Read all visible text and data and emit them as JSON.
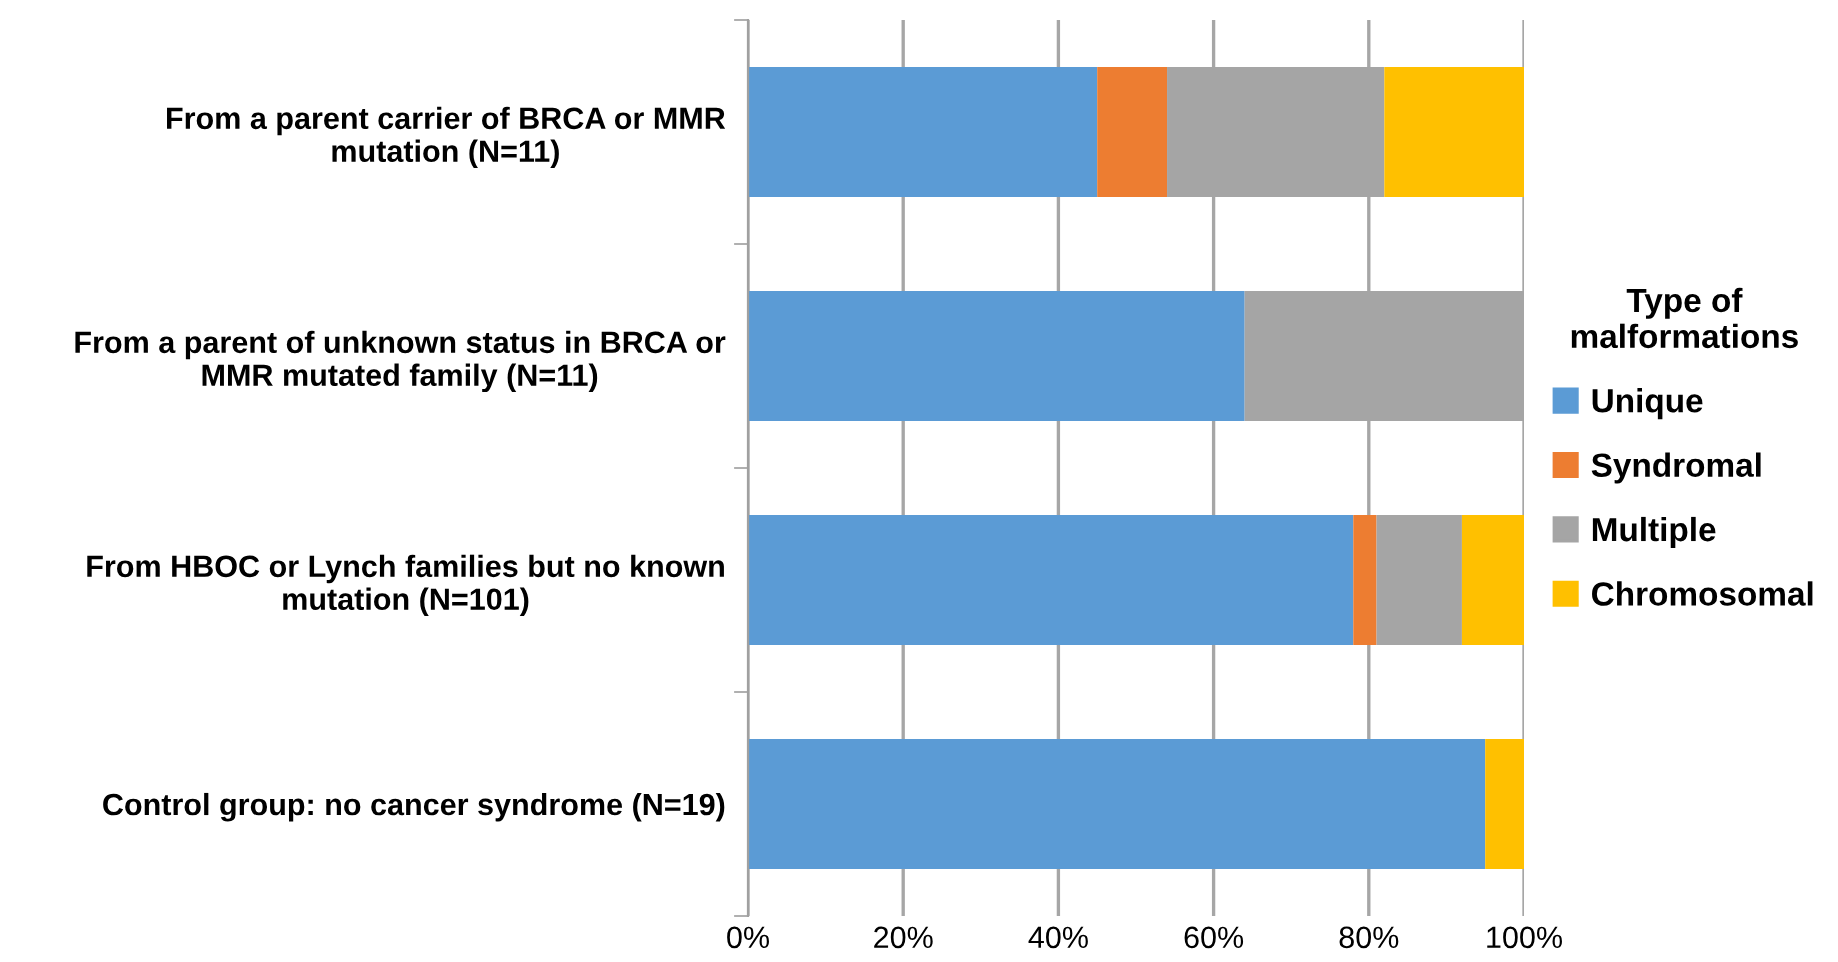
{
  "chart_data": {
    "type": "bar",
    "orientation": "horizontal",
    "stacked": true,
    "categories": [
      "From a parent carrier of BRCA or MMR\nmutation (N=11)",
      "From a parent of unknown status in BRCA or\nMMR mutated family (N=11)",
      "From HBOC or Lynch families but no known\nmutation (N=101)",
      "Control group: no cancer syndrome (N=19)"
    ],
    "series": [
      {
        "name": "Unique",
        "color": "#5b9bd5",
        "values": [
          45,
          64,
          78,
          95
        ]
      },
      {
        "name": "Syndromal",
        "color": "#ed7d31",
        "values": [
          9,
          0,
          3,
          0
        ]
      },
      {
        "name": "Multiple",
        "color": "#a5a5a5",
        "values": [
          28,
          36,
          11,
          0
        ]
      },
      {
        "name": "Chromosomal",
        "color": "#ffc000",
        "values": [
          18,
          0,
          8,
          5
        ]
      }
    ],
    "legend_title": "Type of\nmalformations",
    "legend": "right",
    "xlim": [
      0,
      100
    ],
    "xticks": [
      {
        "value": 0,
        "label": "0%"
      },
      {
        "value": 20,
        "label": "20%"
      },
      {
        "value": 40,
        "label": "40%"
      },
      {
        "value": 60,
        "label": "60%"
      },
      {
        "value": 80,
        "label": "80%"
      },
      {
        "value": 100,
        "label": "100%"
      }
    ],
    "grid": "x"
  }
}
